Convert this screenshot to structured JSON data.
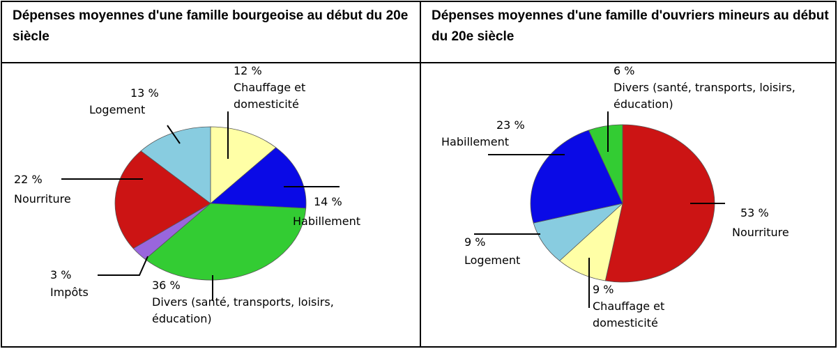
{
  "chart_data": [
    {
      "type": "pie",
      "title": "Dépenses moyennes d'une famille bourgeoise au début du 20e siècle",
      "categories": [
        "Chauffage et domesticité",
        "Habillement",
        "Divers (santé, transports, loisirs, éducation)",
        "Impôts",
        "Nourriture",
        "Logement"
      ],
      "values": [
        12,
        14,
        36,
        3,
        22,
        13
      ],
      "value_labels": [
        "12 %",
        "14 %",
        "36 %",
        "3 %",
        "22 %",
        "13 %"
      ],
      "colors": [
        "#ffffa6",
        "#0a0ae6",
        "#33cc33",
        "#9966dd",
        "#cc1414",
        "#88cce0"
      ]
    },
    {
      "type": "pie",
      "title": "Dépenses moyennes d'une famille d'ouvriers mineurs au début du 20e siècle",
      "categories": [
        "Nourriture",
        "Chauffage et domesticité",
        "Logement",
        "Habillement",
        "Divers (santé, transports, loisirs, éducation)"
      ],
      "values": [
        53,
        9,
        9,
        23,
        6
      ],
      "value_labels": [
        "53 %",
        "9 %",
        "9 %",
        "23 %",
        "6 %"
      ],
      "colors": [
        "#cc1414",
        "#ffffa6",
        "#88cce0",
        "#0a0ae6",
        "#33cc33"
      ]
    }
  ]
}
